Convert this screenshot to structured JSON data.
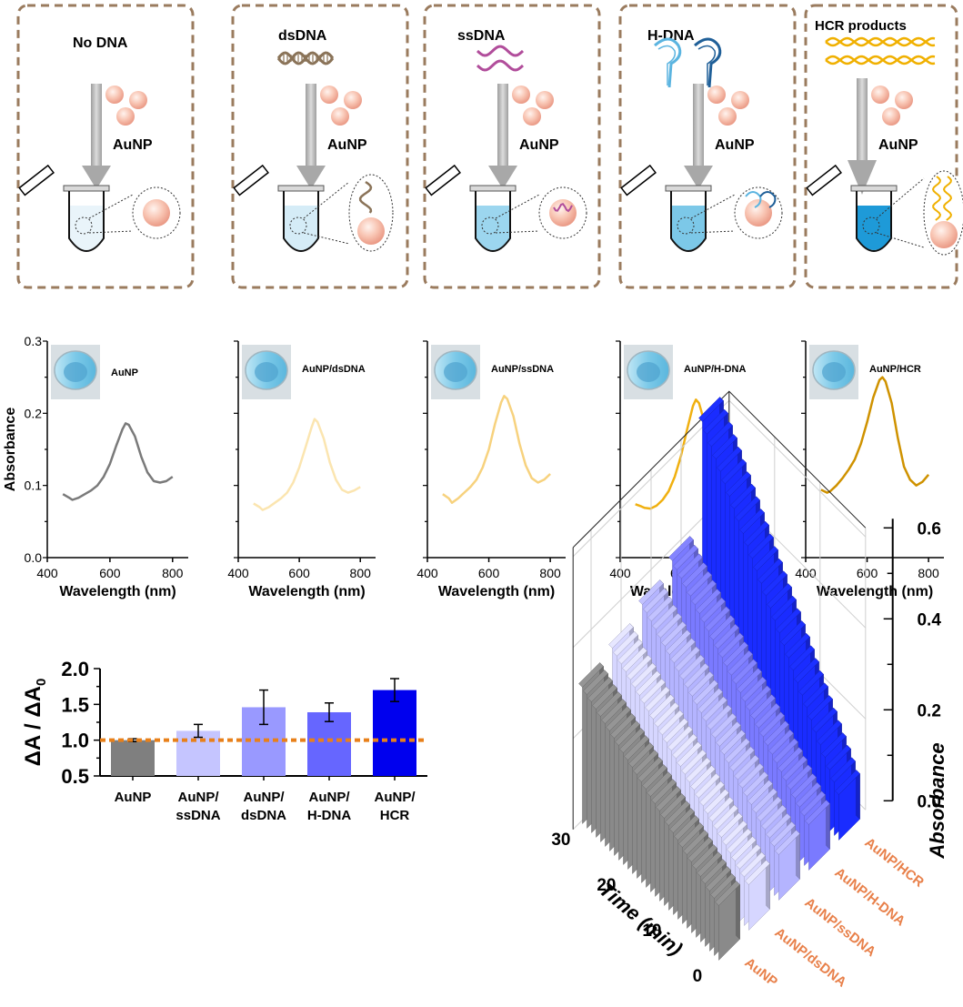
{
  "panels": [
    {
      "header": "No DNA",
      "particle_label": "AuNP",
      "kind": "none"
    },
    {
      "header": "dsDNA",
      "particle_label": "AuNP",
      "kind": "ds"
    },
    {
      "header": "ssDNA",
      "particle_label": "AuNP",
      "kind": "ss"
    },
    {
      "header": "H-DNA",
      "particle_label": "AuNP",
      "kind": "h"
    },
    {
      "header": "HCR products",
      "particle_label": "AuNP",
      "kind": "hcr"
    }
  ],
  "colors": {
    "box_border": "#9a7b5e",
    "arrow": "#bdbdbd",
    "nanoparticle": "#f5b7a4",
    "dsdna": "#8a7358",
    "ssdna": "#b14d9b",
    "hdna_light": "#5bb4e0",
    "hdna_dark": "#1f5f98",
    "hcr": "#f0b000",
    "orange_label": "#e8804a",
    "dashed_line": "#e8801a"
  },
  "chart_data": [
    {
      "type": "line",
      "title": "",
      "inset_label": "AuNP",
      "xlabel": "Wavelength (nm)",
      "ylabel": "Absorbance",
      "xlim": [
        400,
        850
      ],
      "ylim": [
        0.0,
        0.3
      ],
      "xticks": [
        "400",
        "600",
        "800"
      ],
      "yticks": [
        "0.0",
        "0.1",
        "0.2",
        "0.3"
      ],
      "color": "#7a7a7a",
      "x": [
        450,
        470,
        480,
        500,
        520,
        540,
        560,
        580,
        600,
        620,
        640,
        650,
        660,
        680,
        700,
        720,
        740,
        760,
        780,
        800
      ],
      "y": [
        0.088,
        0.083,
        0.08,
        0.083,
        0.088,
        0.093,
        0.1,
        0.112,
        0.13,
        0.155,
        0.178,
        0.186,
        0.184,
        0.168,
        0.14,
        0.118,
        0.106,
        0.104,
        0.106,
        0.112
      ]
    },
    {
      "type": "line",
      "title": "",
      "inset_label": "AuNP/dsDNA",
      "xlabel": "Wavelength (nm)",
      "ylabel": "",
      "xlim": [
        400,
        850
      ],
      "ylim": [
        0.0,
        0.3
      ],
      "xticks": [
        "400",
        "600",
        "800"
      ],
      "yticks": [],
      "color": "#fbe5b0",
      "x": [
        450,
        470,
        480,
        500,
        520,
        540,
        560,
        580,
        600,
        620,
        640,
        650,
        660,
        680,
        700,
        720,
        740,
        760,
        780,
        800
      ],
      "y": [
        0.075,
        0.07,
        0.066,
        0.07,
        0.076,
        0.082,
        0.09,
        0.104,
        0.125,
        0.152,
        0.18,
        0.192,
        0.188,
        0.165,
        0.132,
        0.108,
        0.094,
        0.09,
        0.093,
        0.098
      ]
    },
    {
      "type": "line",
      "title": "",
      "inset_label": "AuNP/ssDNA",
      "xlabel": "Wavelength (nm)",
      "ylabel": "",
      "xlim": [
        400,
        850
      ],
      "ylim": [
        0.0,
        0.3
      ],
      "xticks": [
        "400",
        "600",
        "800"
      ],
      "yticks": [],
      "color": "#f7d27e",
      "x": [
        450,
        470,
        480,
        500,
        520,
        540,
        560,
        580,
        600,
        620,
        640,
        650,
        660,
        680,
        700,
        720,
        740,
        760,
        780,
        800
      ],
      "y": [
        0.088,
        0.082,
        0.076,
        0.082,
        0.09,
        0.098,
        0.108,
        0.125,
        0.15,
        0.185,
        0.215,
        0.224,
        0.22,
        0.196,
        0.158,
        0.128,
        0.11,
        0.104,
        0.108,
        0.116
      ]
    },
    {
      "type": "line",
      "title": "",
      "inset_label": "AuNP/H-DNA",
      "xlabel": "Wavelength (nm)",
      "ylabel": "",
      "xlim": [
        400,
        850
      ],
      "ylim": [
        0.0,
        0.3
      ],
      "xticks": [
        "400",
        "600",
        "800"
      ],
      "yticks": [],
      "color": "#f0b010",
      "x": [
        450,
        470,
        480,
        500,
        520,
        540,
        560,
        580,
        600,
        620,
        640,
        650,
        660,
        680,
        700,
        720,
        740,
        760,
        780,
        800
      ],
      "y": [
        0.074,
        0.071,
        0.069,
        0.068,
        0.072,
        0.08,
        0.092,
        0.112,
        0.14,
        0.176,
        0.21,
        0.219,
        0.214,
        0.185,
        0.14,
        0.104,
        0.082,
        0.074,
        0.075,
        0.08
      ]
    },
    {
      "type": "line",
      "title": "",
      "inset_label": "AuNP/HCR",
      "xlabel": "Wavelength (nm)",
      "ylabel": "",
      "xlim": [
        400,
        850
      ],
      "ylim": [
        0.0,
        0.3
      ],
      "xticks": [
        "400",
        "600",
        "800"
      ],
      "yticks": [],
      "color": "#cf9200",
      "x": [
        450,
        470,
        480,
        500,
        520,
        540,
        560,
        580,
        600,
        620,
        640,
        650,
        660,
        680,
        700,
        720,
        740,
        760,
        780,
        800
      ],
      "y": [
        0.094,
        0.09,
        0.092,
        0.1,
        0.11,
        0.122,
        0.136,
        0.158,
        0.188,
        0.222,
        0.246,
        0.25,
        0.244,
        0.214,
        0.166,
        0.126,
        0.108,
        0.1,
        0.105,
        0.115
      ]
    },
    {
      "type": "bar",
      "title": "",
      "xlabel": "",
      "ylabel": "ΔA / ΔA",
      "ylabel_sub": "0",
      "ylim": [
        0.5,
        2.0
      ],
      "yticks": [
        "0.5",
        "1.0",
        "1.5",
        "2.0"
      ],
      "reference_line": 1.0,
      "categories": [
        "AuNP",
        "AuNP/ ssDNA",
        "AuNP/ dsDNA",
        "AuNP/ H-DNA",
        "AuNP/ HCR"
      ],
      "category_lines": [
        [
          "AuNP"
        ],
        [
          "AuNP/",
          "ssDNA"
        ],
        [
          "AuNP/",
          "dsDNA"
        ],
        [
          "AuNP/",
          "H-DNA"
        ],
        [
          "AuNP/",
          "HCR"
        ]
      ],
      "values": [
        1.0,
        1.13,
        1.46,
        1.39,
        1.7
      ],
      "errors": [
        0.02,
        0.09,
        0.24,
        0.13,
        0.16
      ],
      "colors": [
        "#7f7f7f",
        "#c5c5ff",
        "#9999ff",
        "#6666ff",
        "#0000ee"
      ]
    },
    {
      "type": "bar3d",
      "title": "",
      "xlabel": "Time (min)",
      "zlabel": "Absorbance",
      "xticks": [
        "0",
        "10",
        "20",
        "30"
      ],
      "zticks": [
        "0.0",
        "0.2",
        "0.4",
        "0.6"
      ],
      "zlim": [
        0.0,
        0.6
      ],
      "series": [
        {
          "name": "AuNP",
          "color": "#8a8a8a",
          "start": 0.3,
          "end": 0.12
        },
        {
          "name": "AuNP/dsDNA",
          "color": "#d6d6ff",
          "start": 0.32,
          "end": 0.1
        },
        {
          "name": "AuNP/ssDNA",
          "color": "#b4b4ff",
          "start": 0.35,
          "end": 0.1
        },
        {
          "name": "AuNP/H-DNA",
          "color": "#7a7aff",
          "start": 0.38,
          "end": 0.1
        },
        {
          "name": "AuNP/HCR",
          "color": "#1a2cff",
          "start": 0.62,
          "end": 0.1
        }
      ],
      "points_per_series": 31
    }
  ]
}
